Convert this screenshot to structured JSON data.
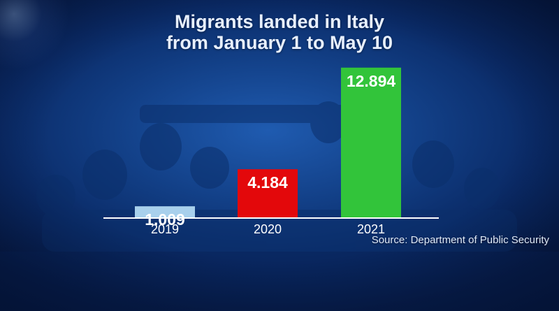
{
  "chart_data": {
    "type": "bar",
    "title_line1": "Migrants landed in Italy",
    "title_line2": "from January 1 to May 10",
    "categories": [
      "2019",
      "2020",
      "2021"
    ],
    "values": [
      1009,
      4184,
      12894
    ],
    "value_labels": [
      "1.009",
      "4.184",
      "12.894"
    ],
    "bar_colors": [
      "#a8d0ec",
      "#e3080b",
      "#32c43a"
    ],
    "ylim": [
      0,
      13000
    ],
    "source": "Source: Department of Public Security",
    "grid": false,
    "legend": "none"
  },
  "colors": {
    "background": "#0f3a80",
    "title_text": "#e8f0ff",
    "axis_line": "#ffffff"
  }
}
